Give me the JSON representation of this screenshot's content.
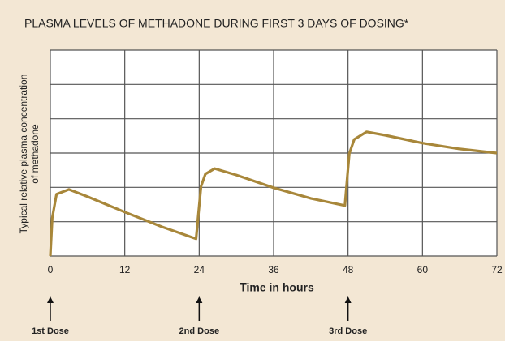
{
  "chart_data": {
    "type": "line",
    "title": "PLASMA LEVELS OF METHADONE DURING FIRST 3 DAYS OF DOSING*",
    "xlabel": "Time in hours",
    "ylabel": [
      "Typical relative plasma concentration",
      "of methadone"
    ],
    "xlim": [
      0,
      72
    ],
    "xticks": [
      0,
      12,
      24,
      36,
      48,
      60,
      72
    ],
    "ylim": [
      0,
      6
    ],
    "yticks": [
      0,
      1,
      2,
      3,
      4,
      5,
      6
    ],
    "grid": true,
    "series": [
      {
        "name": "Methadone",
        "color": "#a8873a",
        "x": [
          0,
          0.3,
          1,
          3,
          6,
          12,
          18,
          23.5,
          24.3,
          25,
          26.5,
          30,
          36,
          42,
          47.5,
          48.2,
          49,
          51,
          54,
          60,
          66,
          72
        ],
        "values": [
          0,
          1.1,
          1.8,
          1.94,
          1.73,
          1.28,
          0.85,
          0.5,
          2.03,
          2.39,
          2.55,
          2.36,
          1.99,
          1.68,
          1.47,
          2.98,
          3.4,
          3.62,
          3.52,
          3.29,
          3.12,
          3.0
        ]
      }
    ],
    "annotations": [
      {
        "x": 0,
        "label": "1st Dose"
      },
      {
        "x": 24,
        "label": "2nd Dose"
      },
      {
        "x": 48,
        "label": "3rd Dose"
      }
    ]
  }
}
